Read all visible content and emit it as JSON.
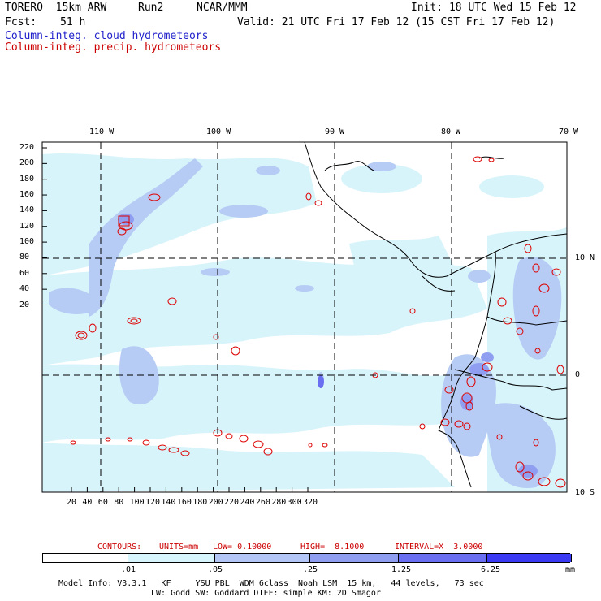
{
  "header": {
    "model": "TORERO  15km ARW",
    "run": "Run2",
    "org": "NCAR/MMM",
    "init": "Init: 18 UTC Wed 15 Feb 12",
    "fcst_label": "Fcst:",
    "fcst_value": "51 h",
    "valid": "Valid: 21 UTC Fri 17 Feb 12 (15 CST Fri 17 Feb 12)"
  },
  "legend": {
    "cloud": "Column-integ. cloud hydrometeors",
    "precip": "Column-integ. precip. hydrometeors"
  },
  "map": {
    "top_lon_labels": [
      "110 W",
      "100 W",
      "90 W",
      "80 W",
      "70 W"
    ],
    "right_lat_labels": [
      "10 N",
      "0",
      "10 S"
    ],
    "left_ticks": [
      "220",
      "200",
      "180",
      "160",
      "140",
      "120",
      "100",
      "80",
      "60",
      "40",
      "20"
    ],
    "bottom_ticks": [
      "20",
      "40",
      "60",
      "80",
      "100",
      "120",
      "140",
      "160",
      "180",
      "200",
      "220",
      "240",
      "260",
      "280",
      "300",
      "320"
    ],
    "colors": {
      "frame": "#000000",
      "level1": "#d8f4fb",
      "level2": "#b7ccf4",
      "level3": "#8f9ef1",
      "level4": "#6a6ef1",
      "precip_contour": "#dd0000",
      "cloud_contour": "#2222cc"
    }
  },
  "contours_info": {
    "label": "CONTOURS:",
    "units": "UNITS=mm",
    "low": "LOW= 0.10000",
    "high": "HIGH=  8.1000",
    "interval": "INTERVAL=X  3.0000"
  },
  "colorbar": {
    "labels": [
      ".01",
      ".05",
      ".25",
      "1.25",
      "6.25"
    ],
    "unit": "mm",
    "colors": [
      "#ffffff",
      "#d6f5fc",
      "#b3c6f5",
      "#8f9ef1",
      "#6a6ef1",
      "#3a3af3",
      "#1212ee"
    ]
  },
  "footer": {
    "line1": "Model Info: V3.3.1   KF     YSU PBL  WDM 6class  Noah LSM  15 km,   44 levels,   73 sec",
    "line2": "LW: Godd SW: Goddard DIFF: simple KM: 2D Smagor"
  }
}
